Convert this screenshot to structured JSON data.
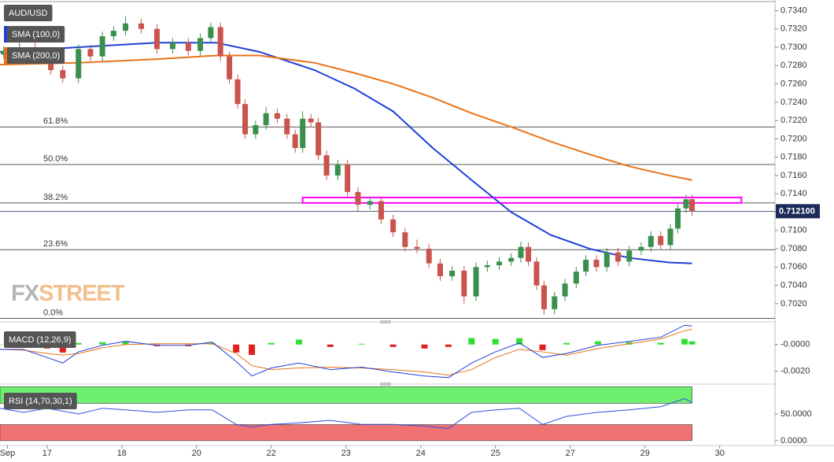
{
  "chart_data": [
    {
      "type": "candlestick",
      "symbol": "AUD/USD",
      "watermark": [
        "FX",
        "STREET"
      ],
      "xlim": [
        0.37,
        10.74
      ],
      "ylim": [
        0.7001,
        0.7349
      ],
      "yticks": [
        {
          "value": 0.702,
          "label": "0.7020"
        },
        {
          "value": 0.704,
          "label": "0.7040"
        },
        {
          "value": 0.706,
          "label": "0.7060"
        },
        {
          "value": 0.708,
          "label": "0.7080"
        },
        {
          "value": 0.71,
          "label": "0.7100"
        },
        {
          "value": 0.712,
          "label": "0.7120"
        },
        {
          "value": 0.714,
          "label": "0.7140"
        },
        {
          "value": 0.716,
          "label": "0.7160"
        },
        {
          "value": 0.718,
          "label": "0.7180"
        },
        {
          "value": 0.72,
          "label": "0.7200"
        },
        {
          "value": 0.722,
          "label": "0.7220"
        },
        {
          "value": 0.724,
          "label": "0.7240"
        },
        {
          "value": 0.726,
          "label": "0.7260"
        },
        {
          "value": 0.728,
          "label": "0.7280"
        },
        {
          "value": 0.73,
          "label": "0.7300"
        },
        {
          "value": 0.732,
          "label": "0.7320"
        },
        {
          "value": 0.734,
          "label": "0.7340"
        }
      ],
      "up_color": "#3a8f4e",
      "down_color": "#c9544d",
      "x": [
        0.42,
        0.63,
        0.84,
        1.05,
        1.21,
        1.42,
        1.58,
        1.74,
        1.89,
        2.05,
        2.26,
        2.47,
        2.68,
        2.89,
        3.05,
        3.19,
        3.32,
        3.44,
        3.55,
        3.65,
        3.79,
        3.93,
        4.08,
        4.21,
        4.32,
        4.42,
        4.53,
        4.63,
        4.74,
        4.89,
        5.02,
        5.16,
        5.32,
        5.47,
        5.63,
        5.79,
        5.95,
        6.11,
        6.26,
        6.42,
        6.58,
        6.74,
        6.89,
        7.05,
        7.21,
        7.34,
        7.44,
        7.55,
        7.65,
        7.79,
        7.93,
        8.08,
        8.21,
        8.35,
        8.49,
        8.64,
        8.79,
        8.95,
        9.08,
        9.21,
        9.34,
        9.44,
        9.55,
        9.63
      ],
      "open": [
        0.7292,
        0.7296,
        0.73,
        0.729,
        0.7275,
        0.7266,
        0.7298,
        0.729,
        0.7312,
        0.7318,
        0.7326,
        0.732,
        0.7298,
        0.7305,
        0.7296,
        0.731,
        0.7322,
        0.729,
        0.7265,
        0.7238,
        0.7205,
        0.7215,
        0.7228,
        0.7222,
        0.7205,
        0.719,
        0.7222,
        0.7218,
        0.7182,
        0.716,
        0.7172,
        0.7142,
        0.7128,
        0.7132,
        0.7112,
        0.7098,
        0.7082,
        0.708,
        0.7064,
        0.705,
        0.7056,
        0.7028,
        0.706,
        0.7062,
        0.7066,
        0.707,
        0.7082,
        0.7066,
        0.704,
        0.7014,
        0.7028,
        0.7042,
        0.7055,
        0.7068,
        0.706,
        0.7076,
        0.7066,
        0.7078,
        0.7082,
        0.7094,
        0.7084,
        0.7102,
        0.7124,
        0.7134
      ],
      "high": [
        0.7301,
        0.7305,
        0.7305,
        0.7295,
        0.728,
        0.7303,
        0.7303,
        0.7317,
        0.7323,
        0.7334,
        0.7331,
        0.7325,
        0.731,
        0.731,
        0.7315,
        0.7327,
        0.7327,
        0.7295,
        0.727,
        0.7243,
        0.722,
        0.7235,
        0.7233,
        0.7227,
        0.721,
        0.723,
        0.7227,
        0.7223,
        0.7187,
        0.7177,
        0.7177,
        0.7147,
        0.7137,
        0.7137,
        0.7117,
        0.7103,
        0.709,
        0.7085,
        0.7069,
        0.7061,
        0.7061,
        0.7065,
        0.7067,
        0.7071,
        0.7075,
        0.7088,
        0.7087,
        0.7071,
        0.7045,
        0.7033,
        0.7047,
        0.706,
        0.7073,
        0.7073,
        0.7081,
        0.7081,
        0.7083,
        0.7087,
        0.7099,
        0.7099,
        0.7107,
        0.7129,
        0.7139,
        0.7139
      ],
      "low": [
        0.7287,
        0.7291,
        0.7285,
        0.727,
        0.7261,
        0.7261,
        0.7285,
        0.7285,
        0.7307,
        0.7313,
        0.7315,
        0.7293,
        0.7293,
        0.7291,
        0.7291,
        0.7305,
        0.7285,
        0.726,
        0.7233,
        0.72,
        0.72,
        0.721,
        0.7217,
        0.72,
        0.7185,
        0.7185,
        0.7213,
        0.7177,
        0.7155,
        0.7155,
        0.7137,
        0.712,
        0.7123,
        0.7107,
        0.7093,
        0.7077,
        0.7075,
        0.7059,
        0.7045,
        0.7045,
        0.702,
        0.7023,
        0.7055,
        0.7057,
        0.7061,
        0.7065,
        0.7061,
        0.7035,
        0.7008,
        0.7009,
        0.7023,
        0.7037,
        0.705,
        0.7055,
        0.7055,
        0.7061,
        0.7061,
        0.7073,
        0.7077,
        0.7079,
        0.7079,
        0.7097,
        0.7119,
        0.7116
      ],
      "close": [
        0.7296,
        0.73,
        0.729,
        0.7275,
        0.7266,
        0.7298,
        0.729,
        0.7312,
        0.7318,
        0.7326,
        0.732,
        0.7298,
        0.7305,
        0.7296,
        0.731,
        0.7322,
        0.729,
        0.7265,
        0.7238,
        0.7205,
        0.7215,
        0.7228,
        0.7222,
        0.7205,
        0.719,
        0.7222,
        0.7218,
        0.7182,
        0.716,
        0.7172,
        0.7142,
        0.7128,
        0.7132,
        0.7112,
        0.7098,
        0.7082,
        0.708,
        0.7064,
        0.705,
        0.7056,
        0.7028,
        0.706,
        0.7062,
        0.7066,
        0.707,
        0.7082,
        0.7066,
        0.704,
        0.7014,
        0.7028,
        0.7042,
        0.7055,
        0.7068,
        0.706,
        0.7076,
        0.7066,
        0.7078,
        0.7082,
        0.7094,
        0.7084,
        0.7102,
        0.7124,
        0.7134,
        0.7121
      ],
      "overlays": [
        {
          "name": "SMA (100,0)",
          "color": "#1f3fd8",
          "x": [
            0.37,
            1.42,
            2.47,
            3.26,
            3.84,
            4.58,
            5.11,
            5.63,
            6.16,
            6.68,
            7.21,
            7.74,
            8.26,
            8.79,
            9.32,
            9.63
          ],
          "values": [
            0.7295,
            0.73,
            0.7305,
            0.7305,
            0.7295,
            0.7275,
            0.7255,
            0.723,
            0.719,
            0.7155,
            0.712,
            0.7095,
            0.708,
            0.707,
            0.7065,
            0.7064
          ]
        },
        {
          "name": "SMA (200,0)",
          "color": "#e8731a",
          "x": [
            0.37,
            1.42,
            2.47,
            3.26,
            3.84,
            4.58,
            5.11,
            5.63,
            6.16,
            6.68,
            7.21,
            7.74,
            8.26,
            8.79,
            9.32,
            9.63
          ],
          "values": [
            0.7281,
            0.7283,
            0.7287,
            0.7291,
            0.7291,
            0.7283,
            0.7272,
            0.726,
            0.7245,
            0.7228,
            0.7213,
            0.7197,
            0.7183,
            0.717,
            0.716,
            0.7155
          ]
        }
      ],
      "fibonacci": [
        {
          "label": "61.8%",
          "value": 0.7213
        },
        {
          "label": "50.0%",
          "value": 0.7172
        },
        {
          "label": "38.2%",
          "value": 0.713
        },
        {
          "label": "23.6%",
          "value": 0.7079
        },
        {
          "label": "0.0%",
          "value": 0.7004
        }
      ],
      "zone": {
        "from": 0.713,
        "to": 0.7136,
        "x": [
          4.42,
          10.29
        ],
        "color": "#ff00ff"
      },
      "last_price": {
        "value": 0.7121,
        "label": "0.712100"
      }
    },
    {
      "type": "macd",
      "title": "MACD (12,26,9)",
      "xlim": [
        0.37,
        10.74
      ],
      "ylim": [
        -0.00291,
        0.00164
      ],
      "yticks": [
        {
          "value": 0,
          "label": "-0.0000"
        },
        {
          "value": -0.002,
          "label": "-0.0020"
        }
      ],
      "x": [
        0.37,
        0.68,
        1.0,
        1.21,
        1.42,
        1.74,
        2.05,
        2.47,
        2.89,
        3.21,
        3.53,
        3.74,
        4.0,
        4.37,
        4.79,
        5.21,
        5.63,
        6.05,
        6.37,
        6.68,
        7.0,
        7.32,
        7.63,
        7.95,
        8.37,
        8.79,
        9.21,
        9.53,
        9.63
      ],
      "macd": {
        "color": "#1f3fd8",
        "values": [
          -0.00036,
          -0.00036,
          -0.00097,
          -0.00139,
          -0.00055,
          -6e-05,
          0.00024,
          -6e-05,
          -6e-05,
          0.00018,
          -0.00127,
          -0.00236,
          -0.00176,
          -0.00139,
          -0.00188,
          -0.0017,
          -0.00206,
          -0.00236,
          -0.00248,
          -0.00139,
          -0.00055,
          0.00012,
          -0.00097,
          -0.00067,
          -6e-05,
          0.00024,
          0.00055,
          0.00145,
          0.00139
        ]
      },
      "signal": {
        "color": "#e8731a",
        "values": [
          -0.00036,
          -0.00042,
          -0.00067,
          -0.00079,
          -0.00067,
          -0.00024,
          0,
          6e-05,
          6e-05,
          6e-05,
          -0.00067,
          -0.00158,
          -0.00188,
          -0.00176,
          -0.0017,
          -0.00176,
          -0.00188,
          -0.00206,
          -0.0023,
          -0.00188,
          -0.00097,
          -0.00036,
          -0.00055,
          -0.00079,
          -0.0003,
          6e-05,
          0.00042,
          0.00103,
          0.00115
        ]
      },
      "histogram": {
        "up_color": "#33dd33",
        "down_color": "#e02020",
        "values": [
          0,
          6e-05,
          -0.0003,
          -0.0006,
          0.00012,
          0.00018,
          0.00024,
          -0.00012,
          -0.00012,
          0.00012,
          -0.0006,
          -0.00078,
          0.00012,
          0.00037,
          -0.00018,
          6e-05,
          -0.00018,
          -0.0003,
          -0.00018,
          0.00049,
          0.00042,
          0.00048,
          -0.00042,
          0.00012,
          0.00024,
          0.00018,
          0.00013,
          0.00042,
          0.00024
        ]
      }
    },
    {
      "type": "line",
      "title": "RSI (14,70,30,1)",
      "xlim": [
        0.37,
        10.74
      ],
      "ylim": [
        -7.6,
        104.5
      ],
      "yticks": [
        {
          "value": 50,
          "label": "50.0000"
        },
        {
          "value": 0,
          "label": "0.0000"
        }
      ],
      "xticks": [
        {
          "value": 0.47,
          "label": "Sep"
        },
        {
          "value": 1,
          "label": "17"
        },
        {
          "value": 2,
          "label": "18"
        },
        {
          "value": 3,
          "label": "20"
        },
        {
          "value": 4,
          "label": "22"
        },
        {
          "value": 5,
          "label": "23"
        },
        {
          "value": 6,
          "label": "24"
        },
        {
          "value": 7,
          "label": "25"
        },
        {
          "value": 8,
          "label": "27"
        },
        {
          "value": 9,
          "label": "29"
        },
        {
          "value": 10,
          "label": "30"
        }
      ],
      "zones": [
        {
          "from": 70,
          "to": 101,
          "color": "#6ef06e"
        },
        {
          "from": 0,
          "to": 30,
          "color": "#f07272"
        }
      ],
      "zone_x": [
        0.37,
        9.63
      ],
      "color": "#3050e0",
      "x": [
        0.37,
        0.68,
        1.0,
        1.42,
        1.74,
        2.05,
        2.47,
        2.89,
        3.21,
        3.53,
        3.74,
        4.0,
        4.37,
        4.79,
        5.21,
        5.63,
        6.05,
        6.37,
        6.68,
        7.0,
        7.32,
        7.63,
        7.95,
        8.37,
        8.79,
        9.21,
        9.53,
        9.63
      ],
      "values": [
        60.6,
        53.0,
        60.6,
        50,
        60.6,
        57.6,
        53.0,
        57.6,
        57.6,
        30.3,
        25.8,
        30.3,
        33.3,
        37.9,
        30.3,
        30.3,
        27.3,
        22.7,
        53.0,
        57.6,
        60.6,
        30.3,
        45.5,
        53.0,
        57.6,
        63.6,
        78.8,
        71.2
      ]
    }
  ]
}
